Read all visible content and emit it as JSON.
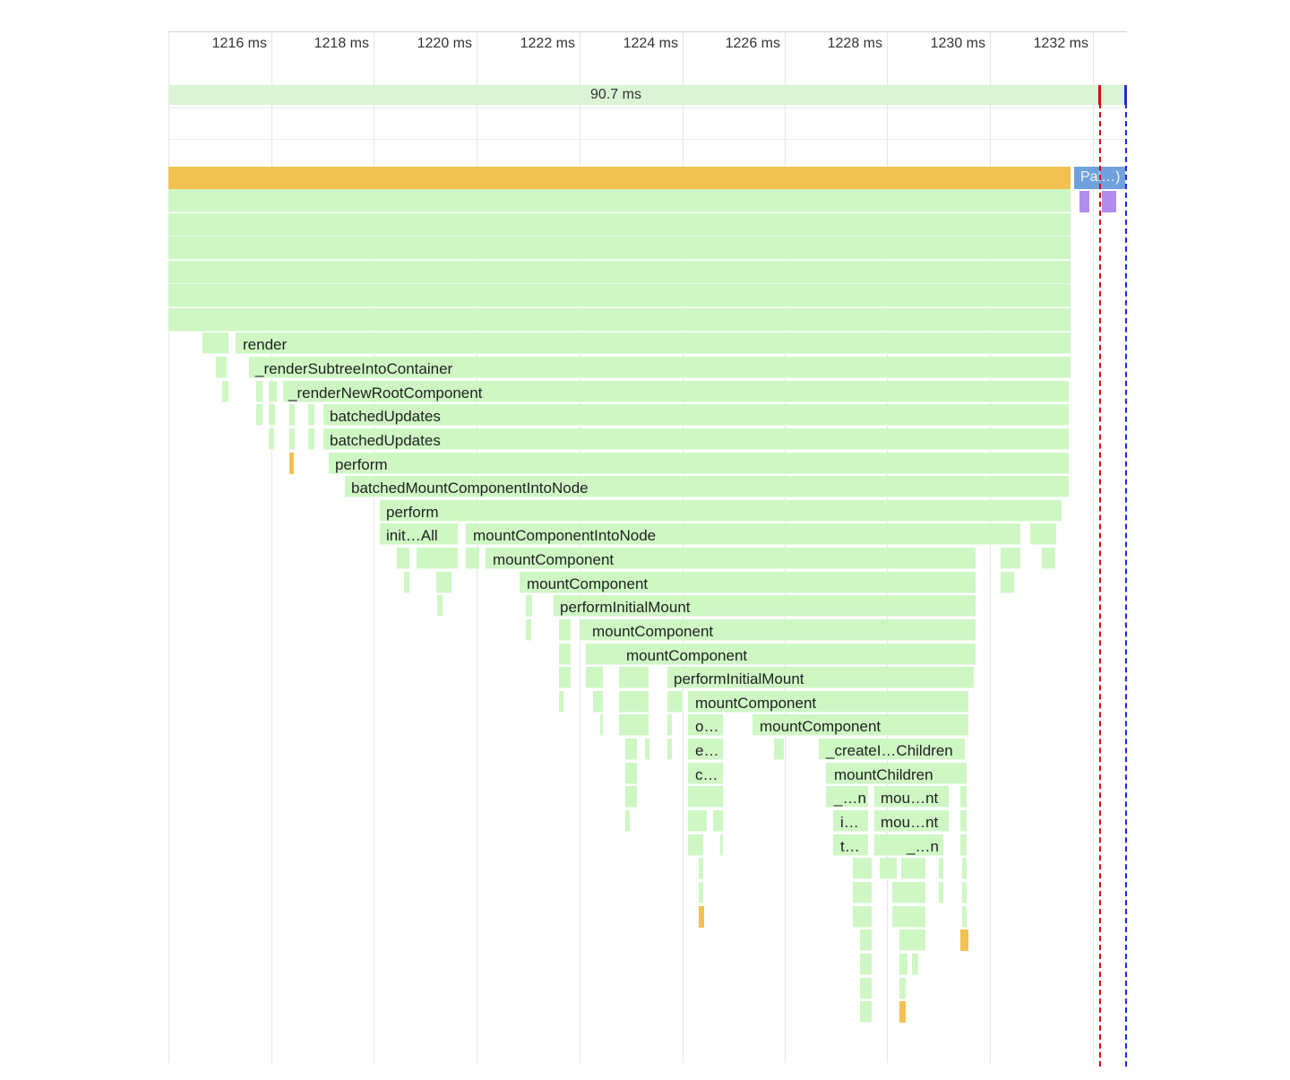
{
  "timeline": {
    "ticks": [
      "1216 ms",
      "1218 ms",
      "1220 ms",
      "1222 ms",
      "1224 ms",
      "1226 ms",
      "1228 ms",
      "1230 ms",
      "1232 ms"
    ],
    "frame_duration": "90.7 ms"
  },
  "colors": {
    "scripting_green": "#cef7c4",
    "task_yellow": "#f1c252",
    "paint_blue": "#6fa1de",
    "purple": "#b18cf0",
    "marker_red": "#d01010",
    "marker_blue": "#1a2fd0"
  },
  "flame": {
    "paint_label": "Pai…)",
    "labels": {
      "render": "render",
      "render_subtree": "_renderSubtreeIntoContainer",
      "render_new_root": "_renderNewRootComponent",
      "batched_updates_1": "batchedUpdates",
      "batched_updates_2": "batchedUpdates",
      "perform_1": "perform",
      "batched_mount": "batchedMountComponentIntoNode",
      "perform_2": "perform",
      "init_all": "init…All",
      "mount_into_node": "mountComponentIntoNode",
      "mount_component_1": "mountComponent",
      "mount_component_2": "mountComponent",
      "perform_initial_mount_1": "performInitialMount",
      "mount_component_3": "mountComponent",
      "mount_component_4": "mountComponent",
      "perform_initial_mount_2": "performInitialMount",
      "mount_component_5": "mountComponent",
      "o_short": "o…",
      "mount_component_6": "mountComponent",
      "e_short": "e…",
      "create_children": "_createI…Children",
      "c_short": "c…",
      "mount_children": "mountChildren",
      "n_short_1": "_…n",
      "mou_nt_1": "mou…nt",
      "i_short": "i…",
      "mou_nt_2": "mou…nt",
      "t_short": "t…",
      "n_short_2": "_…n"
    }
  }
}
